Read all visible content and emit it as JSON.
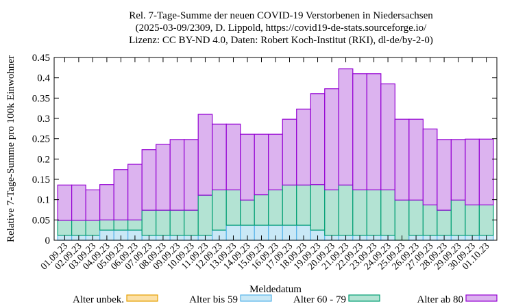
{
  "chart_data": {
    "type": "bar",
    "stacked": true,
    "title_lines": [
      "Rel. 7-Tage-Summe der neuen COVID-19 Verstorbenen in Niedersachsen",
      "(2025-03-09/2309, D. Lippold, https://covid19-de-stats.sourceforge.io/",
      "Lizenz: CC BY-ND 4.0, Daten: Robert Koch-Institut (RKI), dl-de/by-2-0)"
    ],
    "xlabel": "Meldedatum",
    "ylabel": "Relative 7-Tage-Summe pro 100k Einwohner",
    "ylim": [
      0,
      0.45
    ],
    "yticks": [
      "0",
      "0.05",
      "0.1",
      "0.15",
      "0.2",
      "0.25",
      "0.3",
      "0.35",
      "0.4",
      "0.45"
    ],
    "legend_position": "bottom",
    "categories": [
      "01.09.23",
      "02.09.23",
      "03.09.23",
      "04.09.23",
      "05.09.23",
      "06.09.23",
      "07.09.23",
      "08.09.23",
      "09.09.23",
      "10.09.23",
      "11.09.23",
      "12.09.23",
      "13.09.23",
      "14.09.23",
      "15.09.23",
      "16.09.23",
      "17.09.23",
      "18.09.23",
      "19.09.23",
      "20.09.23",
      "21.09.23",
      "22.09.23",
      "23.09.23",
      "24.09.23",
      "25.09.23",
      "26.09.23",
      "27.09.23",
      "28.09.23",
      "29.09.23",
      "30.09.23",
      "01.10.23"
    ],
    "series": [
      {
        "name": "Alter unbek.",
        "fill": "#fce0a6",
        "stroke": "#e69f00",
        "values": [
          0,
          0,
          0,
          0,
          0,
          0,
          0,
          0,
          0,
          0,
          0,
          0,
          0,
          0,
          0,
          0,
          0,
          0,
          0,
          0,
          0,
          0,
          0,
          0,
          0,
          0,
          0,
          0,
          0,
          0,
          0
        ]
      },
      {
        "name": "Alter bis 59",
        "fill": "#c9e8f6",
        "stroke": "#56b4e9",
        "values": [
          0.012,
          0.012,
          0.012,
          0.025,
          0.025,
          0.025,
          0.012,
          0.012,
          0.012,
          0.012,
          0.012,
          0.025,
          0.037,
          0.037,
          0.037,
          0.037,
          0.037,
          0.037,
          0.025,
          0.012,
          0.012,
          0.012,
          0.012,
          0.012,
          0,
          0.012,
          0.012,
          0.012,
          0.012,
          0.012,
          0.012
        ]
      },
      {
        "name": "Alter 60 - 79",
        "fill": "#b3e3d3",
        "stroke": "#009e73",
        "values": [
          0.037,
          0.037,
          0.037,
          0.025,
          0.025,
          0.025,
          0.062,
          0.062,
          0.062,
          0.062,
          0.099,
          0.099,
          0.087,
          0.062,
          0.075,
          0.087,
          0.099,
          0.099,
          0.112,
          0.112,
          0.124,
          0.112,
          0.112,
          0.112,
          0.099,
          0.087,
          0.075,
          0.062,
          0.087,
          0.075,
          0.075
        ]
      },
      {
        "name": "Alter ab 80",
        "fill": "#dcb3ef",
        "stroke": "#9400d3",
        "values": [
          0.087,
          0.087,
          0.075,
          0.087,
          0.124,
          0.137,
          0.149,
          0.162,
          0.174,
          0.174,
          0.199,
          0.162,
          0.162,
          0.162,
          0.149,
          0.137,
          0.162,
          0.187,
          0.224,
          0.249,
          0.286,
          0.286,
          0.286,
          0.261,
          0.199,
          0.199,
          0.187,
          0.174,
          0.149,
          0.162,
          0.162
        ]
      }
    ]
  }
}
